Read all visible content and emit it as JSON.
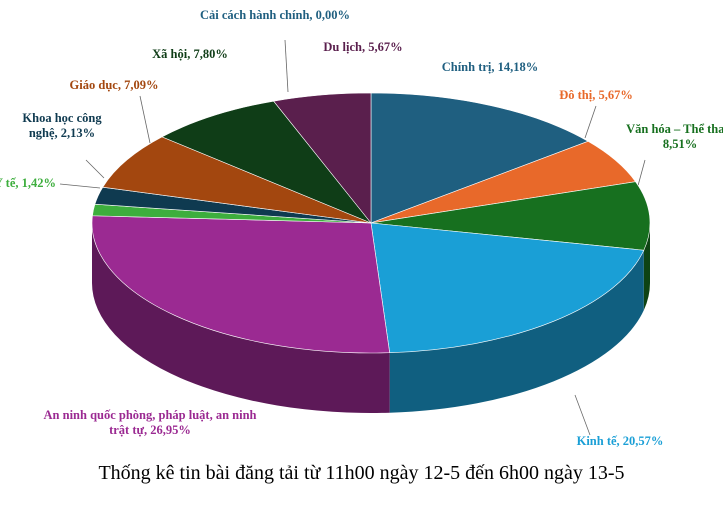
{
  "chart_data": {
    "type": "pie3d",
    "title": "Thống kê tin bài đăng tải từ 11h00 ngày 12-5 đến 6h00 ngày 13-5",
    "categories": [
      "Chính trị",
      "Đô thị",
      "Văn hóa – Thể thao",
      "Kinh tế",
      "An ninh quốc phòng, pháp luật, an ninh trật tự",
      "Y tế",
      "Khoa học công nghệ",
      "Giáo dục",
      "Xã hội",
      "Cải cách hành chính",
      "Du lịch"
    ],
    "values": [
      14.18,
      5.67,
      8.51,
      20.57,
      26.95,
      1.42,
      2.13,
      7.09,
      7.8,
      0,
      5.67
    ],
    "value_labels": [
      "14,18%",
      "5,67%",
      "8,51%",
      "20,57%",
      "26,95%",
      "1,42%",
      "2,13%",
      "7,09%",
      "7,80%",
      "0,00%",
      "5,67%"
    ],
    "colors": [
      "#1f5f80",
      "#e8692a",
      "#17701f",
      "#1a9fd6",
      "#9b2a92",
      "#3dae3d",
      "#0f3a50",
      "#a3470f",
      "#0f3d17",
      "#1f5f80",
      "#5a1f4d"
    ]
  }
}
